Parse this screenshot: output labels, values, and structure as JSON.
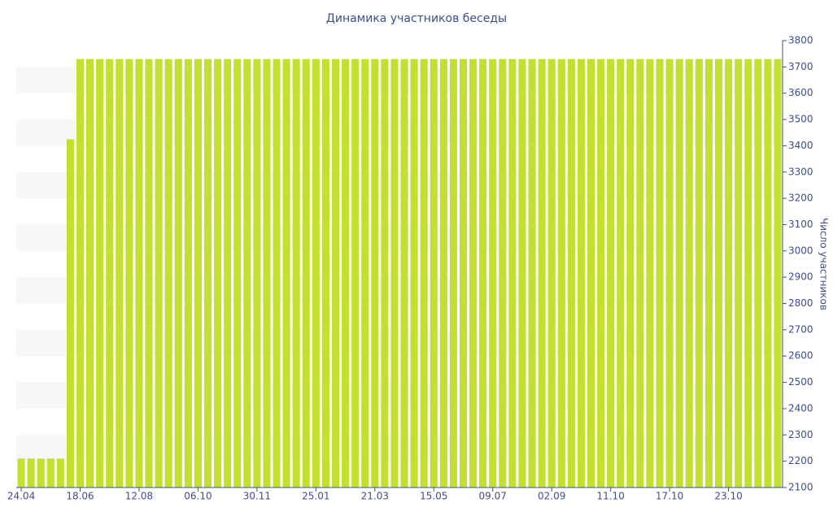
{
  "chart_data": {
    "type": "bar",
    "title": "Динамика участников беседы",
    "y_axis_label": "Число участников",
    "categories": [
      "24.04",
      null,
      null,
      null,
      null,
      null,
      "18.06",
      null,
      null,
      null,
      null,
      null,
      "12.08",
      null,
      null,
      null,
      null,
      null,
      "06.10",
      null,
      null,
      null,
      null,
      null,
      "30.11",
      null,
      null,
      null,
      null,
      null,
      "25.01",
      null,
      null,
      null,
      null,
      null,
      "21.03",
      null,
      null,
      null,
      null,
      null,
      "15.05",
      null,
      null,
      null,
      null,
      null,
      "09.07",
      null,
      null,
      null,
      null,
      null,
      "02.09",
      null,
      null,
      null,
      null,
      null,
      "11.10",
      null,
      null,
      null,
      null,
      null,
      "17.10",
      null,
      null,
      null,
      null,
      null,
      "23.10",
      null,
      null,
      null,
      null,
      null
    ],
    "values": [
      2210,
      2210,
      2210,
      2210,
      2210,
      3425,
      3730,
      3730,
      3730,
      3730,
      3730,
      3730,
      3730,
      3730,
      3730,
      3730,
      3730,
      3730,
      3730,
      3730,
      3730,
      3730,
      3730,
      3730,
      3730,
      3730,
      3730,
      3730,
      3730,
      3730,
      3730,
      3730,
      3730,
      3730,
      3730,
      3730,
      3730,
      3730,
      3730,
      3730,
      3730,
      3730,
      3730,
      3730,
      3730,
      3730,
      3730,
      3730,
      3730,
      3730,
      3730,
      3730,
      3730,
      3730,
      3730,
      3730,
      3730,
      3730,
      3730,
      3730,
      3730,
      3730,
      3730,
      3730,
      3730,
      3730,
      3730,
      3730,
      3730,
      3730,
      3730,
      3730,
      3730,
      3730,
      3730,
      3730,
      3730,
      3730
    ],
    "color": "#c1e02f",
    "ylim": [
      2100,
      3800
    ],
    "yticks": [
      2100,
      2200,
      2300,
      2400,
      2500,
      2600,
      2700,
      2800,
      2900,
      3000,
      3100,
      3200,
      3300,
      3400,
      3500,
      3600,
      3700,
      3800
    ],
    "y_axis_side": "right",
    "grid": "bands"
  }
}
